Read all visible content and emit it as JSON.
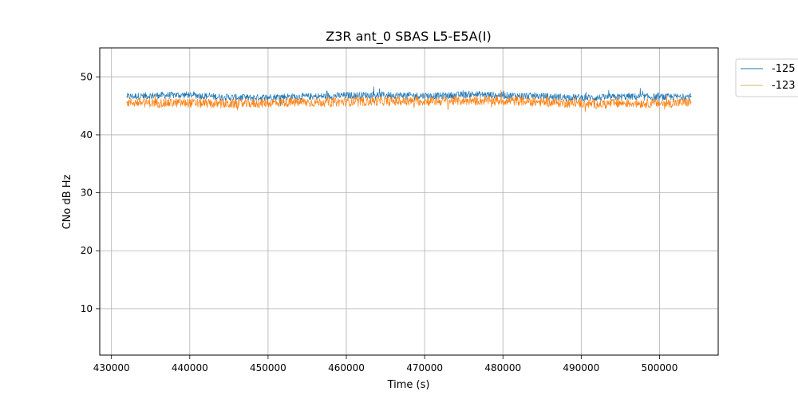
{
  "chart_data": {
    "type": "line",
    "title": "Z3R ant_0 SBAS L5-E5A(I)",
    "xlabel": "Time (s)",
    "ylabel": "CNo dB Hz",
    "xlim": [
      428500,
      507500
    ],
    "ylim": [
      2,
      55
    ],
    "xticks": [
      430000,
      440000,
      450000,
      460000,
      470000,
      480000,
      490000,
      500000
    ],
    "yticks": [
      10,
      20,
      30,
      40,
      50
    ],
    "grid": true,
    "legend_position": "outside-top-right",
    "series": [
      {
        "name": "-125",
        "color": "#1f77b4",
        "noise_band": 0.6,
        "x": [
          432000,
          436000,
          440000,
          444000,
          448000,
          452000,
          456000,
          460000,
          464000,
          468000,
          472000,
          476000,
          480000,
          484000,
          488000,
          492000,
          496000,
          500000,
          504000
        ],
        "y": [
          46.6,
          46.8,
          46.9,
          46.5,
          46.4,
          46.6,
          46.6,
          46.8,
          46.9,
          46.8,
          46.7,
          47.0,
          46.8,
          46.7,
          46.5,
          46.4,
          46.6,
          46.5,
          46.6
        ]
      },
      {
        "name": "-123",
        "color": "#ff7f0e",
        "legend_color": "#d4b46a",
        "noise_band": 0.8,
        "x": [
          432000,
          436000,
          440000,
          444000,
          448000,
          452000,
          456000,
          460000,
          464000,
          468000,
          472000,
          476000,
          480000,
          484000,
          488000,
          492000,
          496000,
          500000,
          504000
        ],
        "y": [
          45.6,
          45.5,
          45.5,
          45.3,
          45.4,
          45.6,
          45.6,
          45.7,
          45.8,
          45.8,
          45.8,
          45.9,
          45.9,
          45.7,
          45.5,
          45.3,
          45.5,
          45.4,
          45.6
        ]
      }
    ]
  }
}
